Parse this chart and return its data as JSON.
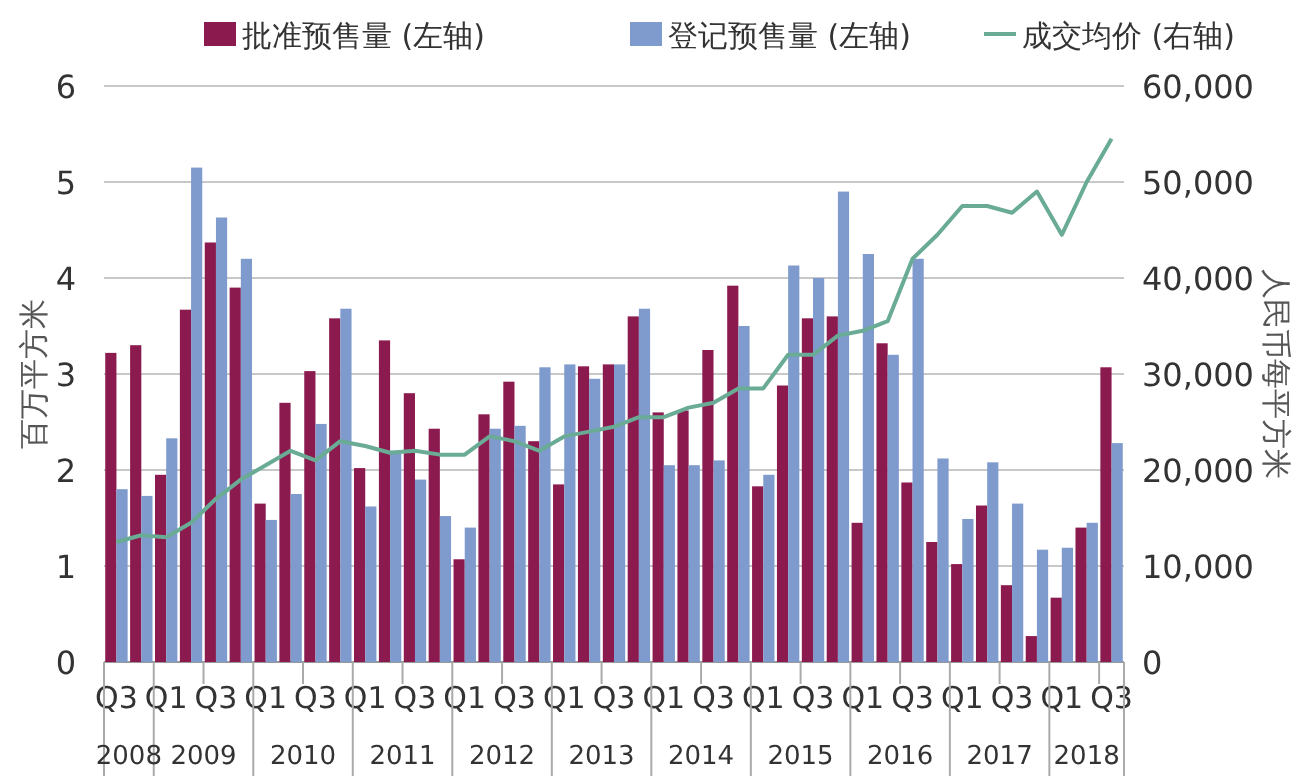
{
  "chart_data": {
    "type": "bar",
    "categories": [
      "Q3",
      null,
      "Q1",
      null,
      "Q3",
      null,
      "Q1",
      null,
      "Q3",
      null,
      "Q1",
      null,
      "Q3",
      null,
      "Q1",
      null,
      "Q3",
      null,
      "Q1",
      null,
      "Q3",
      null,
      "Q1",
      null,
      "Q3",
      null,
      "Q1",
      null,
      "Q3",
      null,
      "Q1",
      null,
      "Q3",
      null,
      "Q1",
      null,
      "Q3",
      null,
      "Q1",
      null,
      "Q3"
    ],
    "series": [
      {
        "name": "批准预售量 (左轴)",
        "color": "#8b1a4f",
        "values": [
          3.22,
          3.3,
          1.95,
          3.67,
          4.37,
          3.9,
          1.65,
          2.7,
          3.03,
          3.58,
          2.02,
          3.35,
          2.8,
          2.43,
          1.07,
          2.58,
          2.92,
          2.3,
          1.85,
          3.08,
          3.1,
          3.6,
          2.6,
          2.62,
          3.25,
          3.92,
          1.83,
          2.88,
          3.58,
          3.6,
          1.45,
          3.32,
          1.87,
          1.25,
          1.02,
          1.63,
          0.8,
          0.27,
          0.67,
          1.4,
          3.07
        ]
      },
      {
        "name": "登记预售量 (左轴)",
        "color": "#7f9acc",
        "values": [
          1.8,
          1.73,
          2.33,
          5.15,
          4.63,
          4.2,
          1.48,
          1.75,
          2.48,
          3.68,
          1.62,
          2.2,
          1.9,
          1.52,
          1.4,
          2.43,
          2.46,
          3.07,
          3.1,
          2.95,
          3.1,
          3.68,
          2.05,
          2.05,
          2.1,
          3.5,
          1.95,
          4.13,
          4.0,
          4.9,
          4.25,
          3.2,
          4.2,
          2.12,
          1.49,
          2.08,
          1.65,
          1.17,
          1.19,
          1.45,
          2.28
        ]
      },
      {
        "name": "成交均价 (右轴)",
        "type": "line",
        "axis": "y2",
        "color": "#6aab95",
        "values": [
          12500,
          13200,
          13000,
          14500,
          17000,
          19000,
          20500,
          22000,
          21000,
          23000,
          22500,
          21800,
          22000,
          21600,
          21600,
          23500,
          23000,
          22000,
          23500,
          24000,
          24500,
          25500,
          25500,
          26500,
          27000,
          28500,
          28500,
          32000,
          32000,
          34000,
          34500,
          35500,
          42000,
          44500,
          47500,
          47500,
          46800,
          49000,
          44500,
          50000,
          54500
        ]
      }
    ],
    "ylabel": "百万平方米",
    "y2label": "人民币每平方米",
    "ylim": [
      0,
      6
    ],
    "yticks": [
      0,
      1,
      2,
      3,
      4,
      5,
      6
    ],
    "y2lim": [
      0,
      60000
    ],
    "y2ticks": [
      0,
      {
        "value": 10000,
        "label": "10,000"
      },
      {
        "value": 20000,
        "label": "20,000"
      },
      {
        "value": 30000,
        "label": "30,000"
      },
      {
        "value": 40000,
        "label": "40,000"
      },
      {
        "value": 50000,
        "label": "50,000"
      },
      {
        "value": 60000,
        "label": "60,000"
      }
    ],
    "annotations": [
      "2008",
      "2009",
      "2010",
      "2011",
      "2012",
      "2013",
      "2014",
      "2015",
      "2016",
      "2017",
      "2018"
    ],
    "grid": "y",
    "legend": "top",
    "marker": "none",
    "line_style": "solid"
  }
}
